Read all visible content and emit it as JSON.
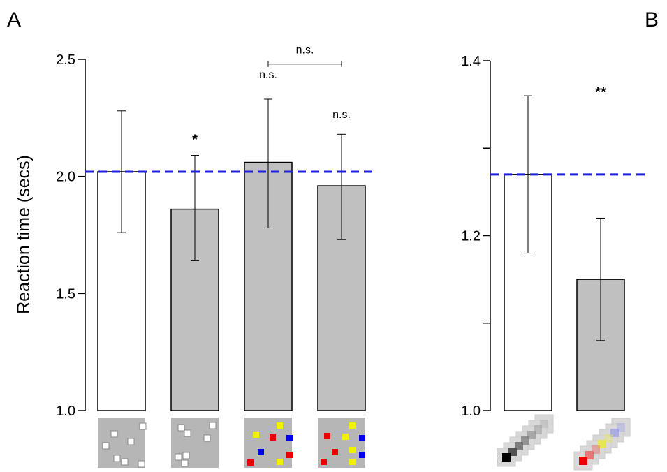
{
  "figure": {
    "panel_a_label": "A",
    "panel_b_label": "B",
    "ylabel": "Reaction time (secs)"
  },
  "colors": {
    "bar_white": "#ffffff",
    "bar_gray": "#c0c0c0",
    "baseline": "#1f1fdc",
    "stim_bg": "#b6b6b6",
    "red": "#ee0000",
    "blue": "#0000ee",
    "yellow": "#f2f200"
  },
  "chart_data": [
    {
      "panel": "A",
      "type": "bar",
      "title": "",
      "xlabel": "",
      "ylabel": "Reaction time (secs)",
      "ylim": [
        1.0,
        2.5
      ],
      "yticks": [
        1.0,
        1.5,
        2.0,
        2.5
      ],
      "ytick_labels": [
        "1.0",
        "1.5",
        "2.0",
        "2.5"
      ],
      "baseline": 2.02,
      "categories": [
        "white-squares-1",
        "white-squares-2",
        "colored-squares-1",
        "colored-squares-2"
      ],
      "values": [
        2.02,
        1.86,
        2.06,
        1.96
      ],
      "error_low": [
        1.76,
        1.64,
        1.78,
        1.73
      ],
      "error_high": [
        2.28,
        2.09,
        2.33,
        2.18
      ],
      "bar_fill": [
        "white",
        "gray",
        "gray",
        "gray"
      ],
      "annotations": [
        {
          "bar": 1,
          "text": "*",
          "y": 2.18
        },
        {
          "bar": 2,
          "text": "n.s.",
          "y": 2.42
        },
        {
          "bar": 3,
          "text": "n.s.",
          "y": 2.25
        }
      ],
      "brackets": [
        {
          "from": 2,
          "to": 3,
          "y": 2.48,
          "text": "n.s."
        }
      ]
    },
    {
      "panel": "B",
      "type": "bar",
      "title": "",
      "xlabel": "",
      "ylabel": "",
      "ylim": [
        1.0,
        1.4
      ],
      "yticks": [
        1.0,
        1.1,
        1.2,
        1.3,
        1.4
      ],
      "ytick_labels": [
        "1.0",
        "",
        "1.2",
        "",
        "1.4"
      ],
      "baseline": 1.27,
      "categories": [
        "gray-trail",
        "colored-trail"
      ],
      "values": [
        1.27,
        1.15
      ],
      "error_low": [
        1.18,
        1.08
      ],
      "error_high": [
        1.36,
        1.22
      ],
      "bar_fill": [
        "white",
        "gray"
      ],
      "annotations": [
        {
          "bar": 1,
          "text": "**",
          "y": 1.37
        }
      ]
    }
  ]
}
